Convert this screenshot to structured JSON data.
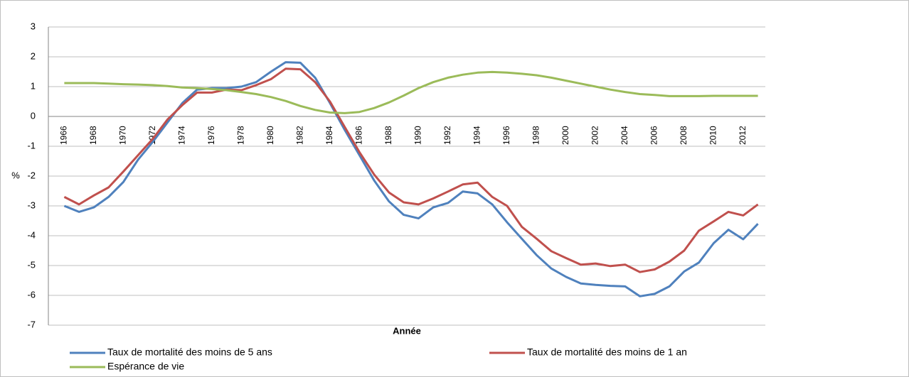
{
  "chart_data": {
    "type": "line",
    "x_label": "Année",
    "y_label": "%",
    "categories": [
      "1966",
      null,
      "1968",
      null,
      "1970",
      null,
      "1972",
      null,
      "1974",
      null,
      "1976",
      null,
      "1978",
      null,
      "1980",
      null,
      "1982",
      null,
      "1984",
      null,
      "1986",
      null,
      "1988",
      null,
      "1990",
      null,
      "1992",
      null,
      "1994",
      null,
      "1996",
      null,
      "1998",
      null,
      "2000",
      null,
      "2002",
      null,
      "2004",
      null,
      "2006",
      null,
      "2008",
      null,
      "2010",
      null,
      "2012",
      null
    ],
    "series": [
      {
        "name": "Taux de mortalité des moins de 5 ans",
        "color": "#4f81bd",
        "values": [
          -3.0,
          -3.2,
          -3.05,
          -2.7,
          -2.2,
          -1.45,
          -0.85,
          -0.2,
          0.45,
          0.9,
          0.95,
          0.95,
          1.0,
          1.15,
          1.5,
          1.82,
          1.8,
          1.3,
          0.45,
          -0.45,
          -1.3,
          -2.15,
          -2.85,
          -3.3,
          -3.42,
          -3.05,
          -2.9,
          -2.52,
          -2.58,
          -2.95,
          -3.55,
          -4.1,
          -4.65,
          -5.1,
          -5.38,
          -5.6,
          -5.65,
          -5.68,
          -5.7,
          -6.03,
          -5.95,
          -5.7,
          -5.2,
          -4.9,
          -4.25,
          -3.8,
          -4.12,
          -3.6
        ]
      },
      {
        "name": "Taux de mortalité des moins de 1 an",
        "color": "#c0504d",
        "values": [
          -2.7,
          -2.95,
          -2.65,
          -2.38,
          -1.85,
          -1.3,
          -0.75,
          -0.1,
          0.38,
          0.8,
          0.8,
          0.9,
          0.88,
          1.05,
          1.25,
          1.6,
          1.58,
          1.15,
          0.5,
          -0.35,
          -1.2,
          -1.95,
          -2.55,
          -2.88,
          -2.95,
          -2.75,
          -2.52,
          -2.28,
          -2.22,
          -2.7,
          -3.0,
          -3.7,
          -4.1,
          -4.52,
          -4.75,
          -4.97,
          -4.93,
          -5.02,
          -4.97,
          -5.22,
          -5.13,
          -4.87,
          -4.5,
          -3.83,
          -3.52,
          -3.2,
          -3.32,
          -2.95
        ]
      },
      {
        "name": "Espérance de vie",
        "color": "#9bbb59",
        "values": [
          1.12,
          1.12,
          1.12,
          1.1,
          1.08,
          1.07,
          1.05,
          1.02,
          0.97,
          0.95,
          0.92,
          0.88,
          0.82,
          0.75,
          0.65,
          0.52,
          0.35,
          0.22,
          0.13,
          0.11,
          0.15,
          0.28,
          0.47,
          0.7,
          0.95,
          1.15,
          1.3,
          1.4,
          1.47,
          1.49,
          1.47,
          1.43,
          1.38,
          1.3,
          1.2,
          1.1,
          1.0,
          0.9,
          0.82,
          0.75,
          0.72,
          0.68,
          0.68,
          0.68,
          0.69,
          0.69,
          0.69,
          0.69
        ]
      }
    ],
    "ylim": [
      -7,
      3
    ],
    "yticks": [
      3,
      2,
      1,
      0,
      -1,
      -2,
      -3,
      -4,
      -5,
      -6,
      -7
    ],
    "grid": true,
    "legend": "bottom"
  }
}
